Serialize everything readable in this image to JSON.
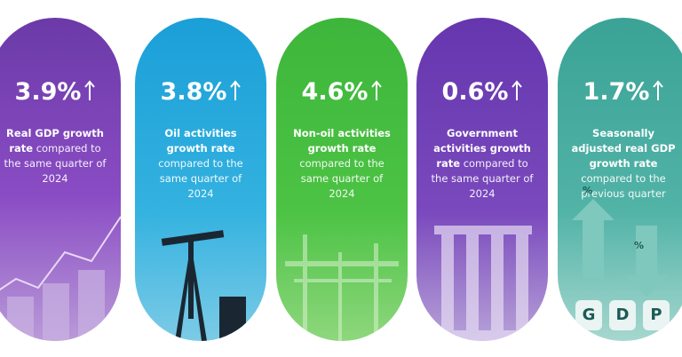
{
  "cards": [
    {
      "value": "3.9%",
      "title": "Real GDP growth rate",
      "detail": "compared to the same quarter of 2024"
    },
    {
      "value": "3.8%",
      "title": "Oil activities growth rate",
      "detail": "compared to the same quarter of 2024"
    },
    {
      "value": "4.6%",
      "title": "Non-oil activities growth rate",
      "detail": "compared to the same quarter of 2024"
    },
    {
      "value": "0.6%",
      "title": "Government activities growth rate",
      "detail": "compared to the same quarter of 2024"
    },
    {
      "value": "1.7%",
      "title": "Seasonally adjusted real GDP growth rate",
      "detail": "compared to the previous quarter"
    }
  ],
  "gdp_tiles": [
    "G",
    "D",
    "P"
  ],
  "percent_icons": [
    "%",
    "%"
  ]
}
